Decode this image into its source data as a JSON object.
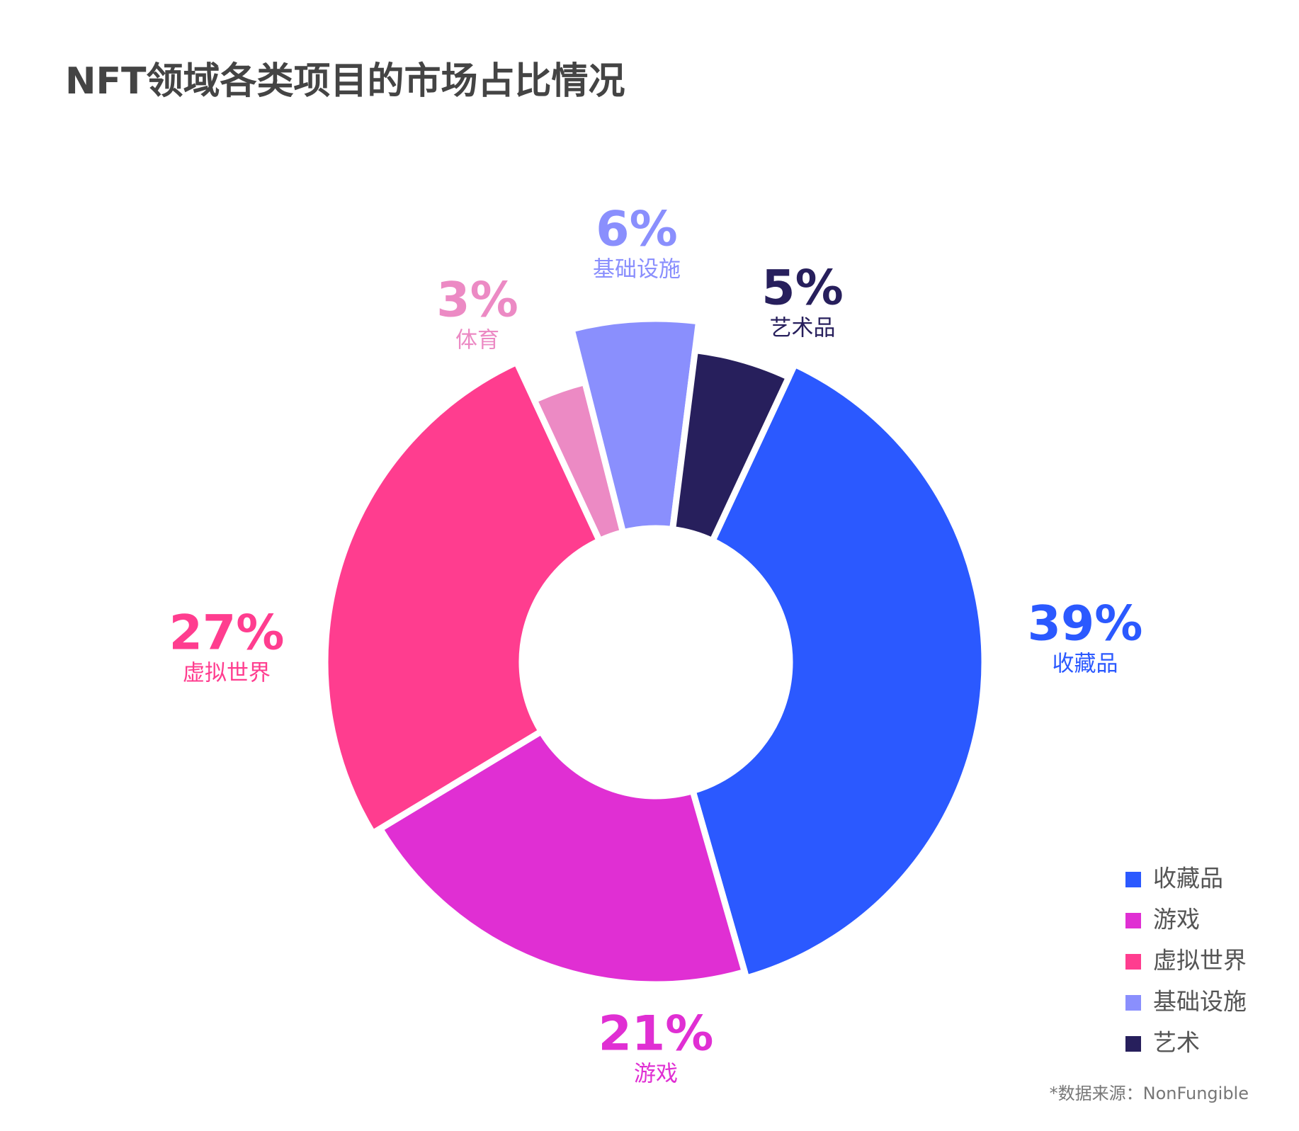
{
  "chart_data": {
    "type": "donut",
    "title": "NFT领域各类项目的市场占比情况",
    "categories": [
      "收藏品",
      "游戏",
      "虚拟世界",
      "体育",
      "基础设施",
      "艺术品"
    ],
    "values": [
      39,
      21,
      27,
      3,
      6,
      5
    ],
    "value_labels": [
      "39%",
      "21%",
      "27%",
      "3%",
      "6%",
      "5%"
    ],
    "colors": [
      "#2b59ff",
      "#e02fd3",
      "#ff3d8f",
      "#ec8ac4",
      "#8a8ffd",
      "#271f5c"
    ],
    "legend": [
      {
        "name": "收藏品",
        "color": "#2b59ff"
      },
      {
        "name": "游戏",
        "color": "#e02fd3"
      },
      {
        "name": "虚拟世界",
        "color": "#ff3d8f"
      },
      {
        "name": "基础设施",
        "color": "#8a8ffd"
      },
      {
        "name": "艺术",
        "color": "#271f5c"
      }
    ],
    "source": "*数据来源：NonFungible"
  }
}
